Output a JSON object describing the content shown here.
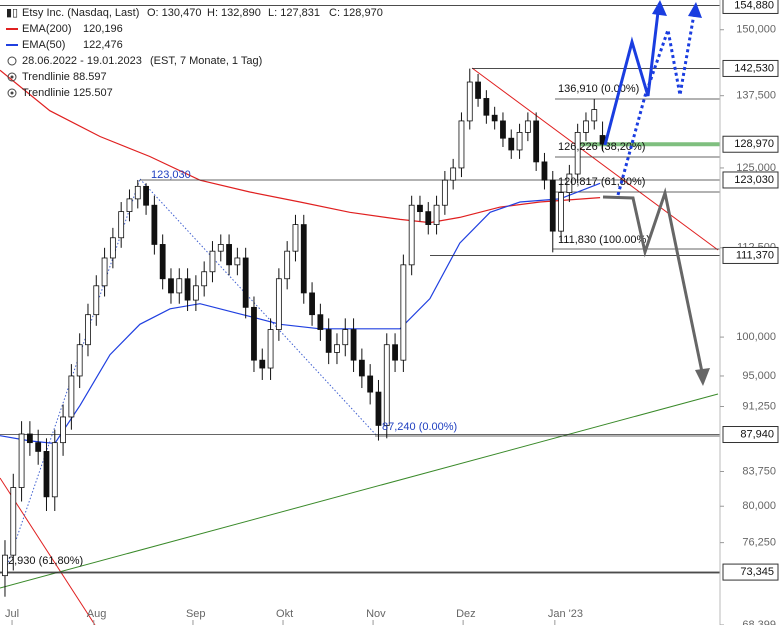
{
  "chart_data": {
    "type": "candlestick",
    "header": {
      "symbol": "Etsy Inc. (Nasdaq, Last)",
      "ohlc": [
        "O: 130,470",
        "H: 132,890",
        "L: 127,831",
        "C: 128,970"
      ],
      "entries": [
        {
          "name": "EMA(200)",
          "value": "120,196",
          "color": "#e02020"
        },
        {
          "name": "EMA(50)",
          "value": "122,476",
          "color": "#2040e0"
        }
      ],
      "range": "28.06.2022 - 19.01.2023",
      "range_info": "(EST, 7 Monate, 1 Tag)",
      "trendlines": [
        "Trendlinie 88.597",
        "Trendlinie 125.507"
      ]
    },
    "log_scale": true,
    "xlim": [
      -1.2,
      172.3
    ],
    "ylim": [
      68.399,
      156
    ],
    "xticks": [
      {
        "value": 1.7,
        "label": "Jul"
      },
      {
        "value": 21.4,
        "label": "Aug"
      },
      {
        "value": 45.3,
        "label": "Sep"
      },
      {
        "value": 67,
        "label": "Okt"
      },
      {
        "value": 88.7,
        "label": "Nov"
      },
      {
        "value": 110.4,
        "label": "Dez"
      },
      {
        "value": 132.5,
        "label": "Jan '23"
      }
    ],
    "yticks": [
      {
        "value": 150,
        "label": "150,000"
      },
      {
        "value": 137.5,
        "label": "137,500"
      },
      {
        "value": 125,
        "label": "125,000"
      },
      {
        "value": 112.5,
        "label": "112,500"
      },
      {
        "value": 100,
        "label": "100,000"
      },
      {
        "value": 95,
        "label": "95,000"
      },
      {
        "value": 91.25,
        "label": "91,250"
      },
      {
        "value": 83.75,
        "label": "83,750"
      },
      {
        "value": 80,
        "label": "80,000"
      },
      {
        "value": 76.25,
        "label": "76,250"
      },
      {
        "value": 68.399,
        "label": "68,399"
      }
    ],
    "levels": [
      {
        "value": 154.88,
        "label": "154,880"
      },
      {
        "value": 142.53,
        "label": "142,530"
      },
      {
        "value": 128.97,
        "label": "128,970"
      },
      {
        "value": 123.03,
        "label": "123,030"
      },
      {
        "value": 111.37,
        "label": "111,370"
      },
      {
        "value": 87.94,
        "label": "87,940"
      },
      {
        "value": 73.345,
        "label": "73,345"
      }
    ],
    "candles": {
      "up_color": "#ffffff",
      "down_color": "#111111",
      "x": [
        0,
        2,
        4,
        6,
        8,
        10,
        12,
        14,
        16,
        18,
        20,
        22,
        24,
        26,
        28,
        30,
        32,
        34,
        36,
        38,
        40,
        42,
        44,
        46,
        48,
        50,
        52,
        54,
        56,
        58,
        60,
        62,
        64,
        66,
        68,
        70,
        72,
        74,
        76,
        78,
        80,
        82,
        84,
        86,
        88,
        90,
        92,
        94,
        96,
        98,
        100,
        102,
        104,
        106,
        108,
        110,
        112,
        114,
        116,
        118,
        120,
        122,
        124,
        126,
        128,
        130,
        132,
        134,
        136,
        138,
        140,
        142,
        144
      ],
      "open": [
        73,
        75,
        82,
        88,
        87,
        86,
        81,
        87,
        90,
        95,
        99,
        103,
        107,
        111,
        114,
        118,
        120,
        122,
        119,
        113,
        108,
        106,
        108,
        105,
        107,
        109,
        112,
        113,
        110,
        111,
        104,
        97,
        96,
        101,
        108,
        112,
        116,
        106,
        103,
        101,
        98,
        99,
        101,
        97,
        95,
        93,
        89,
        99,
        97,
        110,
        119,
        118,
        116,
        119,
        123,
        125,
        133,
        140,
        137,
        134,
        133,
        130,
        128,
        131,
        133,
        126,
        123,
        115,
        121,
        124,
        131,
        133,
        130.47
      ],
      "high": [
        76.5,
        83.5,
        89.5,
        89.5,
        88.5,
        87.5,
        88.5,
        91.5,
        96.5,
        100.5,
        104.5,
        108.5,
        112.5,
        115.5,
        119.5,
        121.5,
        123.03,
        122.5,
        120.5,
        114.5,
        109.5,
        109.5,
        109.5,
        108.5,
        110.5,
        113.5,
        114.5,
        114.5,
        112.5,
        112.5,
        105.5,
        98.5,
        102.5,
        109.5,
        113.5,
        117.5,
        117.5,
        107.5,
        104.5,
        102.5,
        100.5,
        102.5,
        102.5,
        98.5,
        96.5,
        94.5,
        100.5,
        100.5,
        111.5,
        120.5,
        120.5,
        119.5,
        120.5,
        124.5,
        126.5,
        134.5,
        142.5,
        141.5,
        138.5,
        135.5,
        134.5,
        131.5,
        132.5,
        134.5,
        134.5,
        127.5,
        124.5,
        122.5,
        125.5,
        132.5,
        134.5,
        136.91,
        132.89
      ],
      "low": [
        71,
        73.5,
        80.5,
        85.5,
        84.5,
        79.5,
        79.5,
        85.5,
        88.5,
        93.5,
        97.5,
        101.5,
        105.5,
        109.5,
        112.5,
        116.5,
        118.5,
        117.5,
        111.5,
        106.5,
        104.5,
        104.5,
        103.5,
        103.5,
        105.5,
        107.5,
        110.5,
        108.5,
        108.5,
        102.5,
        95.5,
        94.5,
        94.5,
        99.5,
        106.5,
        110.5,
        104.5,
        101.5,
        99.5,
        96.5,
        96.5,
        97.5,
        95.5,
        93.5,
        91.5,
        87.24,
        87.5,
        95.5,
        95.5,
        108.5,
        116.5,
        114.5,
        114.5,
        117.5,
        121.5,
        123.5,
        131.5,
        135.5,
        132.5,
        131.5,
        128.5,
        126.5,
        126.5,
        129.5,
        124.5,
        121.5,
        111.83,
        113.5,
        119.5,
        122.5,
        129.5,
        131.5,
        127.83
      ],
      "close": [
        75,
        82,
        88,
        87,
        86,
        81,
        87,
        90,
        95,
        99,
        103,
        107,
        111,
        114,
        118,
        120,
        122,
        119,
        113,
        108,
        106,
        108,
        105,
        107,
        109,
        112,
        113,
        110,
        111,
        104,
        97,
        96,
        101,
        108,
        112,
        116,
        106,
        103,
        101,
        98,
        99,
        101,
        97,
        95,
        93,
        89,
        99,
        97,
        110,
        119,
        118,
        116,
        119,
        123,
        125,
        133,
        140,
        137,
        134,
        133,
        130,
        128,
        131,
        133,
        126,
        123,
        115,
        121,
        124,
        131,
        133,
        135,
        128.97
      ]
    },
    "lines": [
      {
        "name": "EMA(200)",
        "color": "#e02020",
        "x": [
          -1.2,
          10.8,
          22.9,
          34.9,
          47,
          59,
          71.1,
          83.1,
          95.2,
          102.4,
          109.6,
          119.3,
          128.9,
          143.4
        ],
        "values": [
          142.2,
          134.8,
          130.3,
          126.9,
          123,
          121.1,
          119.5,
          117.9,
          116.8,
          116.3,
          117.1,
          118.7,
          119.5,
          120.2
        ]
      },
      {
        "name": "EMA(50)",
        "color": "#2040e0",
        "x": [
          -1.2,
          6,
          12,
          18.1,
          25.3,
          32.5,
          39.8,
          47,
          56.6,
          66.3,
          75.9,
          85.5,
          95.2,
          102.4,
          109.6,
          116.9,
          124.1,
          133.7,
          143.4
        ],
        "values": [
          87.8,
          87.2,
          86.9,
          91.4,
          97.7,
          101.7,
          103.8,
          104.5,
          103.1,
          101.7,
          101.1,
          101.1,
          101.1,
          105.2,
          113.2,
          117.9,
          119.5,
          120,
          122.5
        ]
      }
    ],
    "annotations": [
      "123,030",
      "87,240 (0.00%)",
      "136,910 (0.00%)",
      "126,226 (38,20%)",
      "120,817 (61,80%)",
      "111,830 (100.00%)",
      "2,930 (61,80%)"
    ]
  }
}
